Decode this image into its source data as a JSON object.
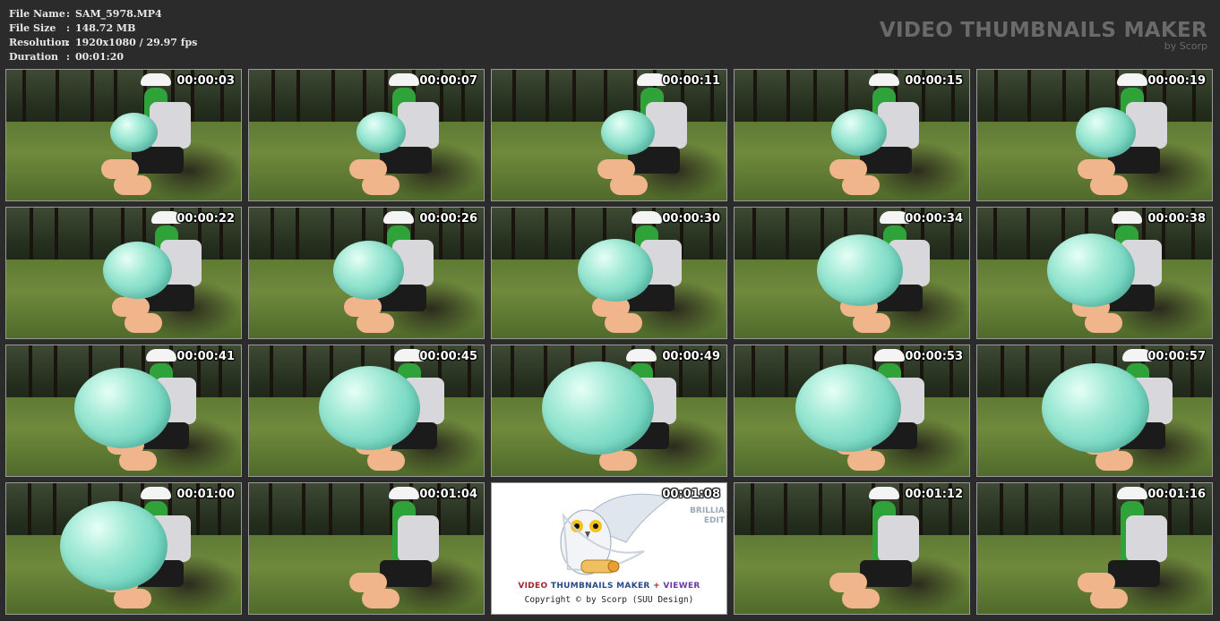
{
  "info": {
    "rows": [
      {
        "key": "File Name",
        "value": "SAM_5978.MP4"
      },
      {
        "key": "File Size",
        "value": "148.72 MB"
      },
      {
        "key": "Resolution",
        "value": "1920x1080 / 29.97 fps"
      },
      {
        "key": "Duration",
        "value": "00:01:20"
      }
    ]
  },
  "brand": {
    "title": "VIDEO THUMBNAILS MAKER",
    "subtitle": "by Scorp"
  },
  "thumbnails": [
    {
      "time": "00:00:03"
    },
    {
      "time": "00:00:07"
    },
    {
      "time": "00:00:11"
    },
    {
      "time": "00:00:15"
    },
    {
      "time": "00:00:19"
    },
    {
      "time": "00:00:22"
    },
    {
      "time": "00:00:26"
    },
    {
      "time": "00:00:30"
    },
    {
      "time": "00:00:34"
    },
    {
      "time": "00:00:38"
    },
    {
      "time": "00:00:41"
    },
    {
      "time": "00:00:45"
    },
    {
      "time": "00:00:49"
    },
    {
      "time": "00:00:53"
    },
    {
      "time": "00:00:57"
    },
    {
      "time": "00:01:00"
    },
    {
      "time": "00:01:04"
    },
    {
      "time": "00:01:08"
    },
    {
      "time": "00:01:12"
    },
    {
      "time": "00:01:16"
    }
  ],
  "logo_tile": {
    "edit_text_1": "BRILLIA",
    "edit_text_2": "EDIT",
    "product_a": "VIDEO",
    "product_b": "THUMBNAILS MAKER",
    "product_c": "+",
    "product_d": "VIEWER",
    "copyright": "Copyright © by Scorp (SUU Design)"
  },
  "colors": {
    "background": "#2b2b2b",
    "balloon": "#8fe3cd",
    "grass": "#6f8a3c"
  }
}
